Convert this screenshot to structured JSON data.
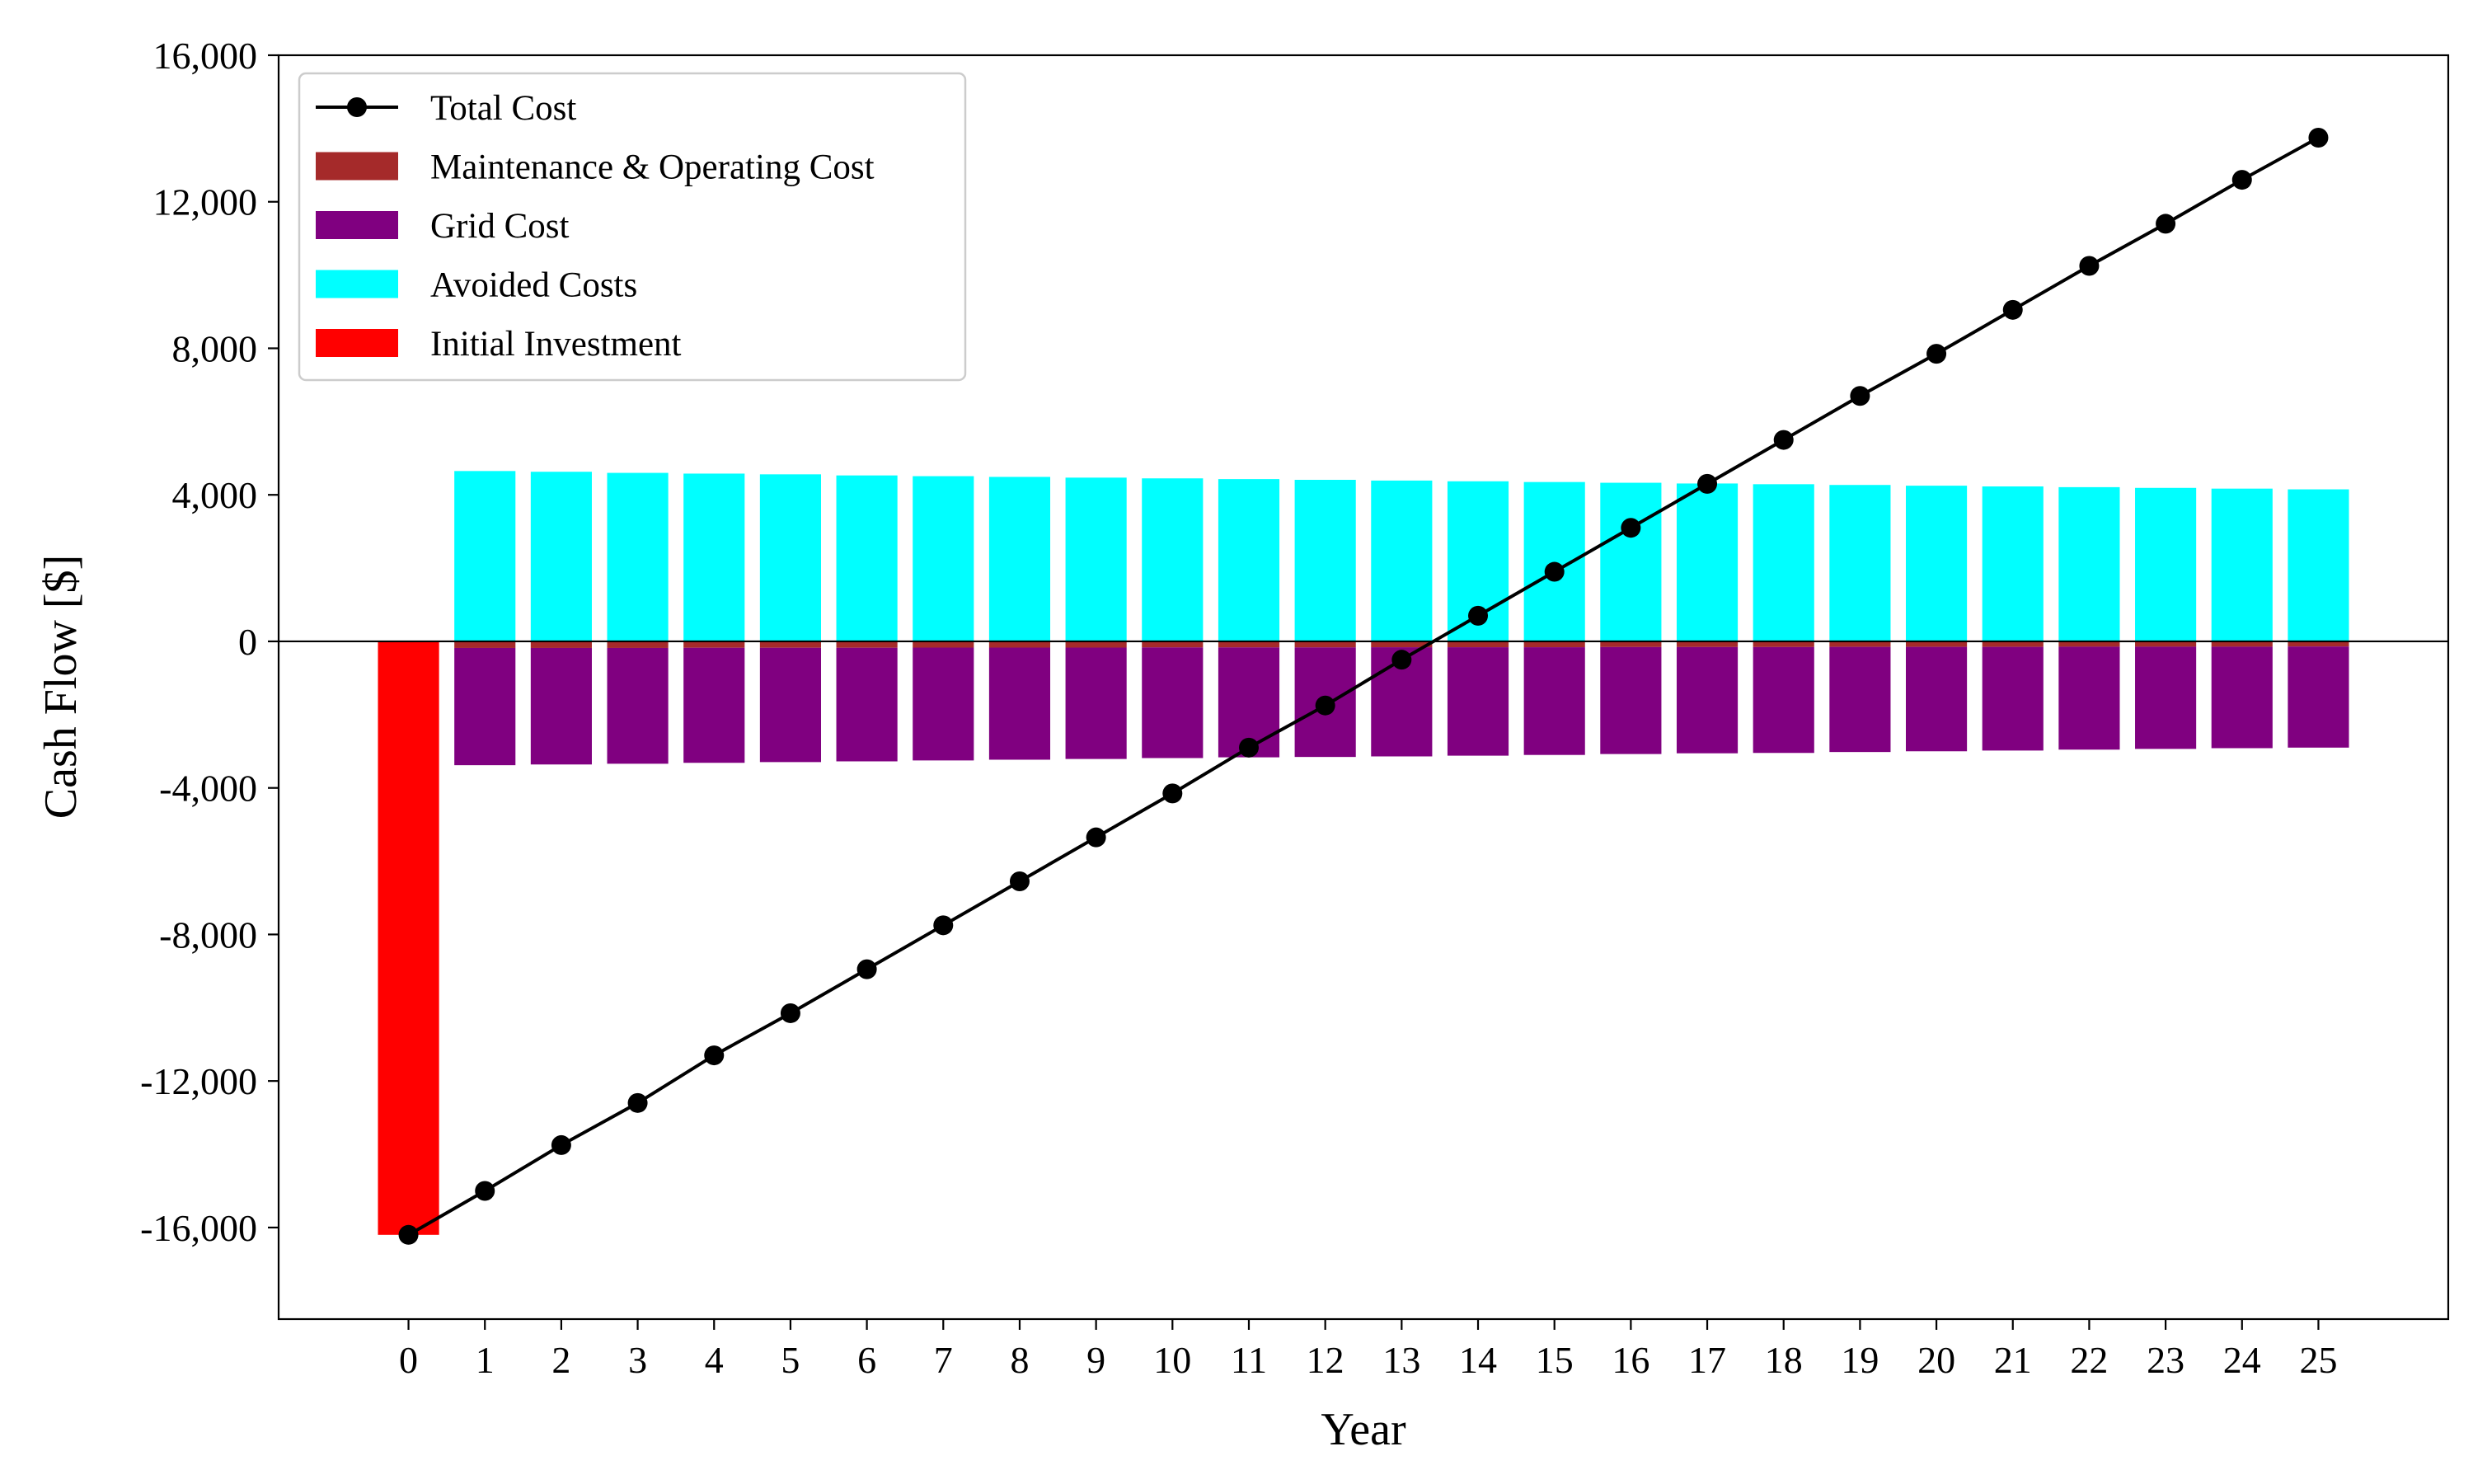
{
  "chart_data": {
    "type": "bar",
    "xlabel": "Year",
    "ylabel": "Cash Flow [$]",
    "categories": [
      "0",
      "1",
      "2",
      "3",
      "4",
      "5",
      "6",
      "7",
      "8",
      "9",
      "10",
      "11",
      "12",
      "13",
      "14",
      "15",
      "16",
      "17",
      "18",
      "19",
      "20",
      "21",
      "22",
      "23",
      "24",
      "25"
    ],
    "ylim": [
      -18500,
      16000
    ],
    "xlim": [
      -1.7,
      26.7
    ],
    "yticks": [
      16000,
      12000,
      8000,
      4000,
      0,
      -4000,
      -8000,
      -12000,
      -16000
    ],
    "ytick_labels": [
      "16,000",
      "12,000",
      "8,000",
      "4,000",
      "0",
      "-4,000",
      "-8,000",
      "-12,000",
      "-16,000"
    ],
    "grid": false,
    "legend_position": "top-left",
    "series": [
      {
        "name": "Total Cost",
        "kind": "line",
        "color": "#000000",
        "values": [
          -16200,
          -15000,
          -13750,
          -12600,
          -11300,
          -10150,
          -8950,
          -7750,
          -6550,
          -5350,
          -4150,
          -2900,
          -1750,
          -500,
          700,
          1900,
          3100,
          4300,
          5500,
          6700,
          7850,
          9050,
          10250,
          11400,
          12600,
          13750
        ]
      },
      {
        "name": "Maintenance & Operating Cost",
        "kind": "bar",
        "color": "#a52a2a",
        "values": [
          0,
          -180,
          -180,
          -180,
          -175,
          -175,
          -175,
          -170,
          -170,
          -170,
          -165,
          -165,
          -165,
          -160,
          -160,
          -160,
          -155,
          -155,
          -155,
          -150,
          -150,
          -150,
          -145,
          -145,
          -145,
          -140
        ]
      },
      {
        "name": "Grid Cost",
        "kind": "bar",
        "color": "#800080",
        "values": [
          0,
          -3200,
          -3180,
          -3160,
          -3140,
          -3120,
          -3100,
          -3080,
          -3060,
          -3040,
          -3020,
          -3000,
          -2990,
          -2980,
          -2960,
          -2940,
          -2920,
          -2900,
          -2890,
          -2870,
          -2850,
          -2830,
          -2810,
          -2790,
          -2770,
          -2760
        ]
      },
      {
        "name": "Avoided Costs",
        "kind": "bar",
        "color": "#00ffff",
        "values": [
          0,
          4650,
          4630,
          4600,
          4580,
          4560,
          4530,
          4510,
          4490,
          4470,
          4450,
          4430,
          4410,
          4390,
          4370,
          4350,
          4330,
          4310,
          4290,
          4270,
          4250,
          4230,
          4210,
          4190,
          4170,
          4150
        ]
      },
      {
        "name": "Initial Investment",
        "kind": "bar",
        "color": "#ff0000",
        "values": [
          -16200,
          0,
          0,
          0,
          0,
          0,
          0,
          0,
          0,
          0,
          0,
          0,
          0,
          0,
          0,
          0,
          0,
          0,
          0,
          0,
          0,
          0,
          0,
          0,
          0,
          0
        ]
      }
    ]
  }
}
